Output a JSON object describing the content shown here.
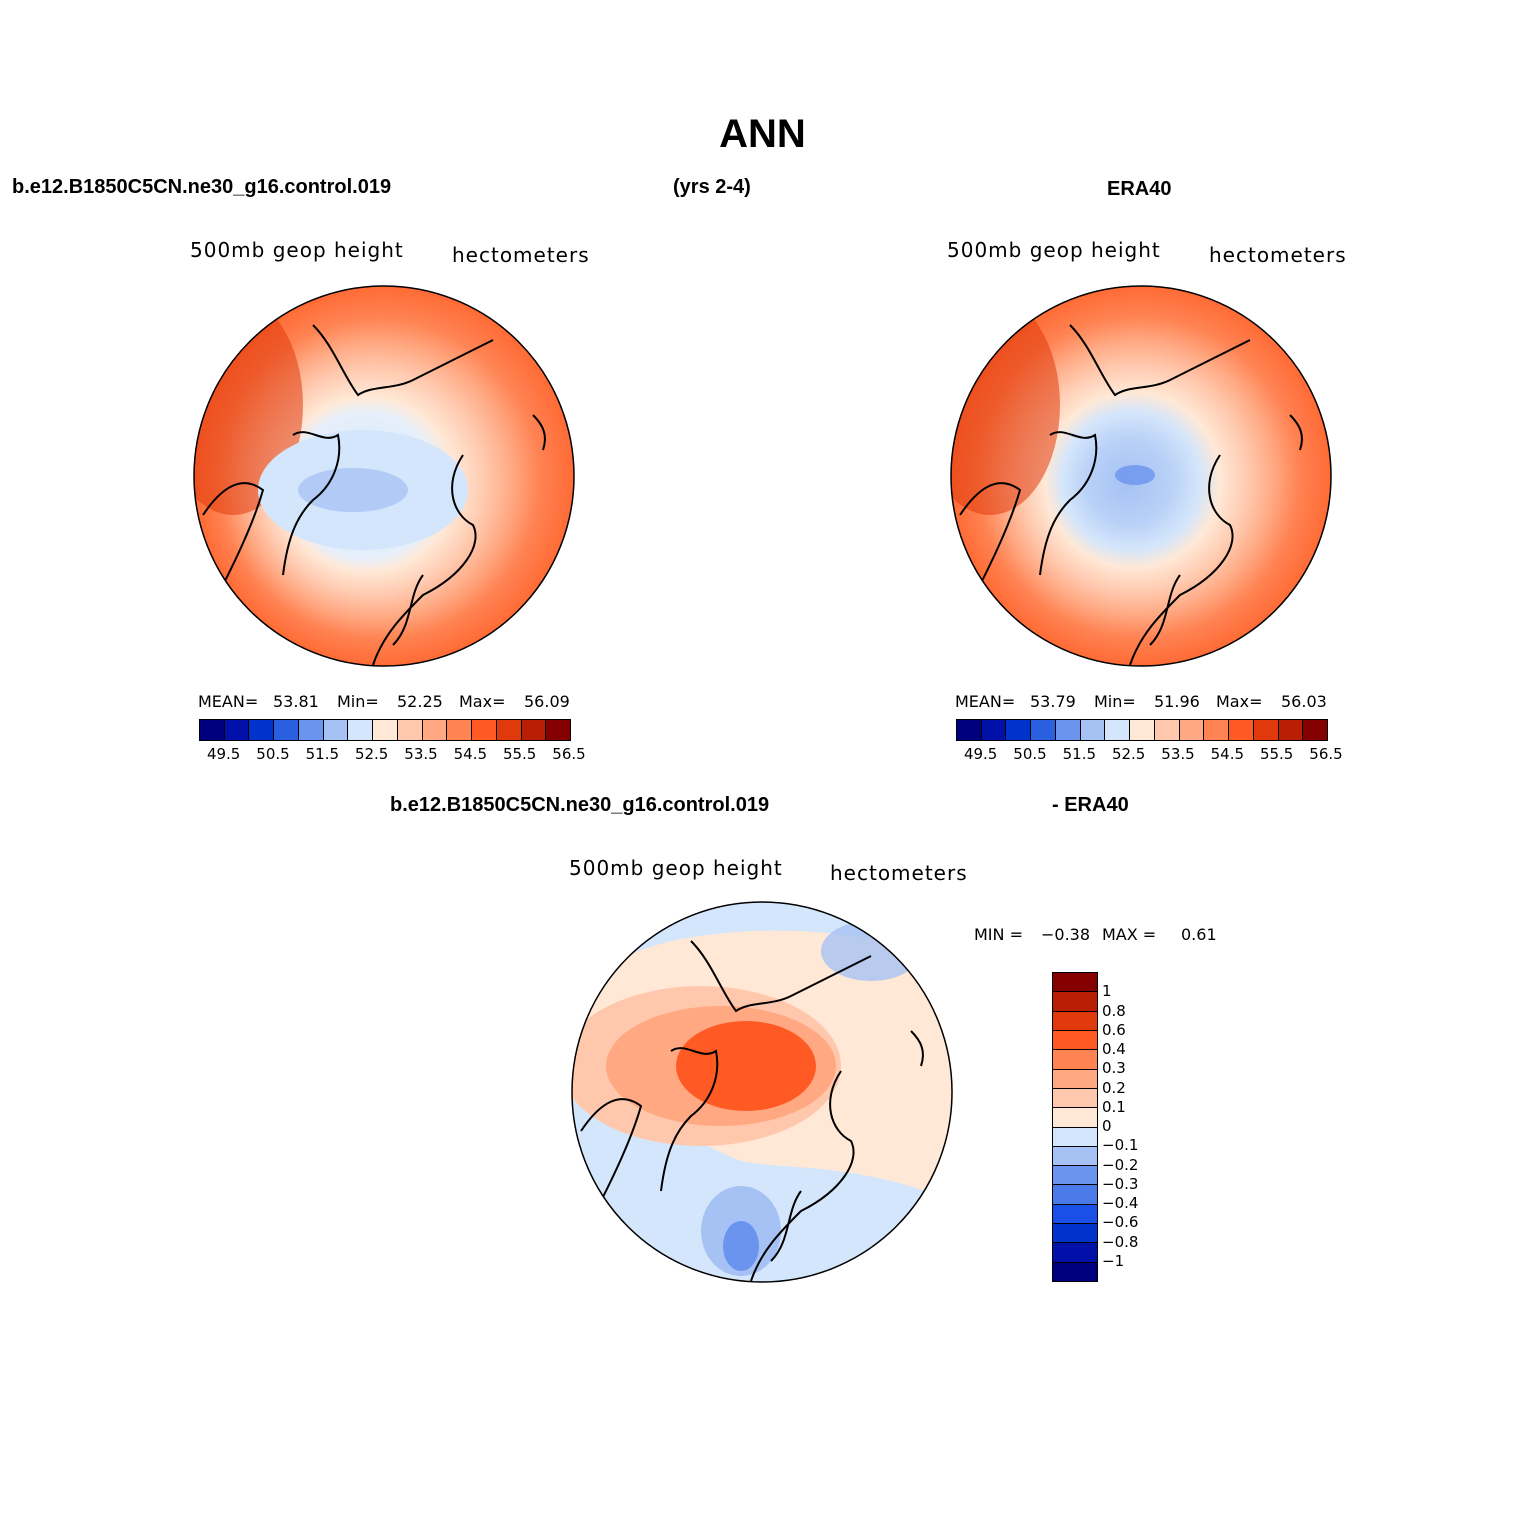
{
  "title": "ANN",
  "top_left_case": "b.e12.B1850C5CN.ne30_g16.control.019",
  "top_years": "(yrs 2-4)",
  "top_right_case": "ERA40",
  "bottom_case": "b.e12.B1850C5CN.ne30_g16.control.019",
  "bottom_right_case": "- ERA40",
  "panels": [
    {
      "variable": "500mb  geop  height",
      "units": "hectometers",
      "mean_label": "MEAN=",
      "mean_value": "53.81",
      "min_label": "Min=",
      "min_value": "52.25",
      "max_label": "Max=",
      "max_value": "56.09"
    },
    {
      "variable": "500mb  geop  height",
      "units": "hectometers",
      "mean_label": "MEAN=",
      "mean_value": "53.79",
      "min_label": "Min=",
      "min_value": "51.96",
      "max_label": "Max=",
      "max_value": "56.03"
    },
    {
      "variable": "500mb  geop  height",
      "units": "hectometers",
      "min_label": "MIN =",
      "min_value": "−0.38",
      "max_label": "MAX =",
      "max_value": "0.61"
    }
  ],
  "abs_colorbar": {
    "colors": [
      "#00007f",
      "#0010a8",
      "#0033cc",
      "#2a5fe0",
      "#6b94ee",
      "#a6c2f4",
      "#d4e6fb",
      "#ffe8d6",
      "#ffc8ad",
      "#ffa882",
      "#ff8353",
      "#ff5a24",
      "#e03a0c",
      "#b81f04",
      "#850000"
    ],
    "tick_labels": [
      "49.5",
      "50.5",
      "51.5",
      "52.5",
      "53.5",
      "54.5",
      "55.5",
      "56.5"
    ]
  },
  "diff_colorbar": {
    "colors": [
      "#850000",
      "#b81f04",
      "#e03a0c",
      "#ff5a24",
      "#ff8353",
      "#ffa882",
      "#ffc8ad",
      "#ffe8d6",
      "#d4e6fb",
      "#a6c2f4",
      "#6b94ee",
      "#4a7ae8",
      "#1a4fe8",
      "#0033cc",
      "#0010a8",
      "#00007f"
    ],
    "tick_labels": [
      "1",
      "0.8",
      "0.6",
      "0.4",
      "0.3",
      "0.2",
      "0.1",
      "0",
      "−0.1",
      "−0.2",
      "−0.3",
      "−0.4",
      "−0.6",
      "−0.8",
      "−1"
    ]
  }
}
